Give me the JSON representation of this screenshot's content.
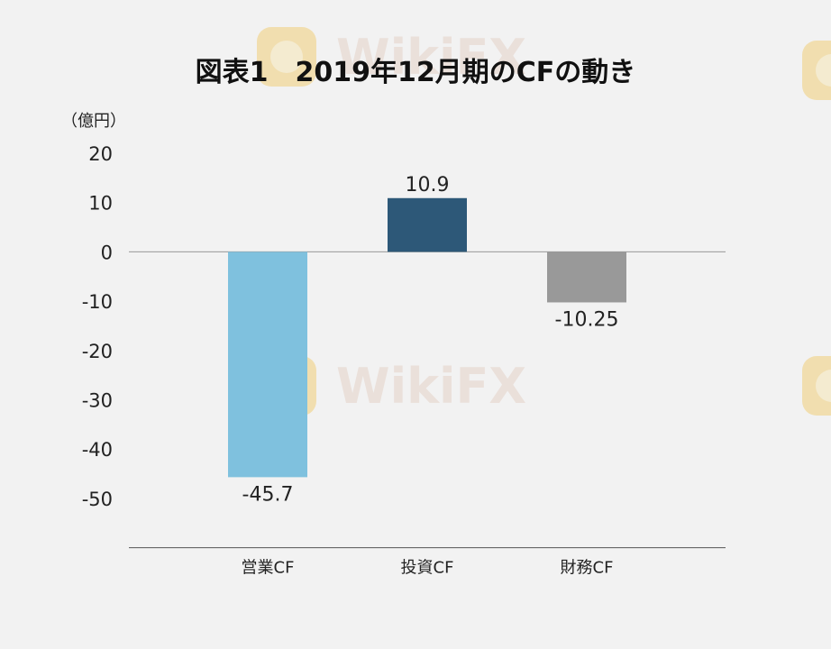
{
  "watermark": {
    "text": "WikiFX"
  },
  "colors": {
    "background": "#f2f2f2",
    "axis": "#999999",
    "watermark_logo": "#f0c860",
    "watermark_text": "#e5d2c8"
  },
  "chart_data": {
    "type": "bar",
    "title": "図表1　2019年12月期のCFの動き",
    "unit_label": "（億円）",
    "xlabel": "",
    "ylabel": "",
    "ylim": [
      -60,
      20
    ],
    "yticks": [
      20,
      10,
      0,
      -10,
      -20,
      -30,
      -40,
      -50
    ],
    "categories": [
      "営業CF",
      "投資CF",
      "財務CF"
    ],
    "values": [
      -45.7,
      10.9,
      -10.25
    ],
    "data_labels": [
      "-45.7",
      "10.9",
      "-10.25"
    ],
    "bar_colors": [
      "#7fc1de",
      "#2d5878",
      "#999999"
    ],
    "grid": false,
    "legend": "none"
  }
}
